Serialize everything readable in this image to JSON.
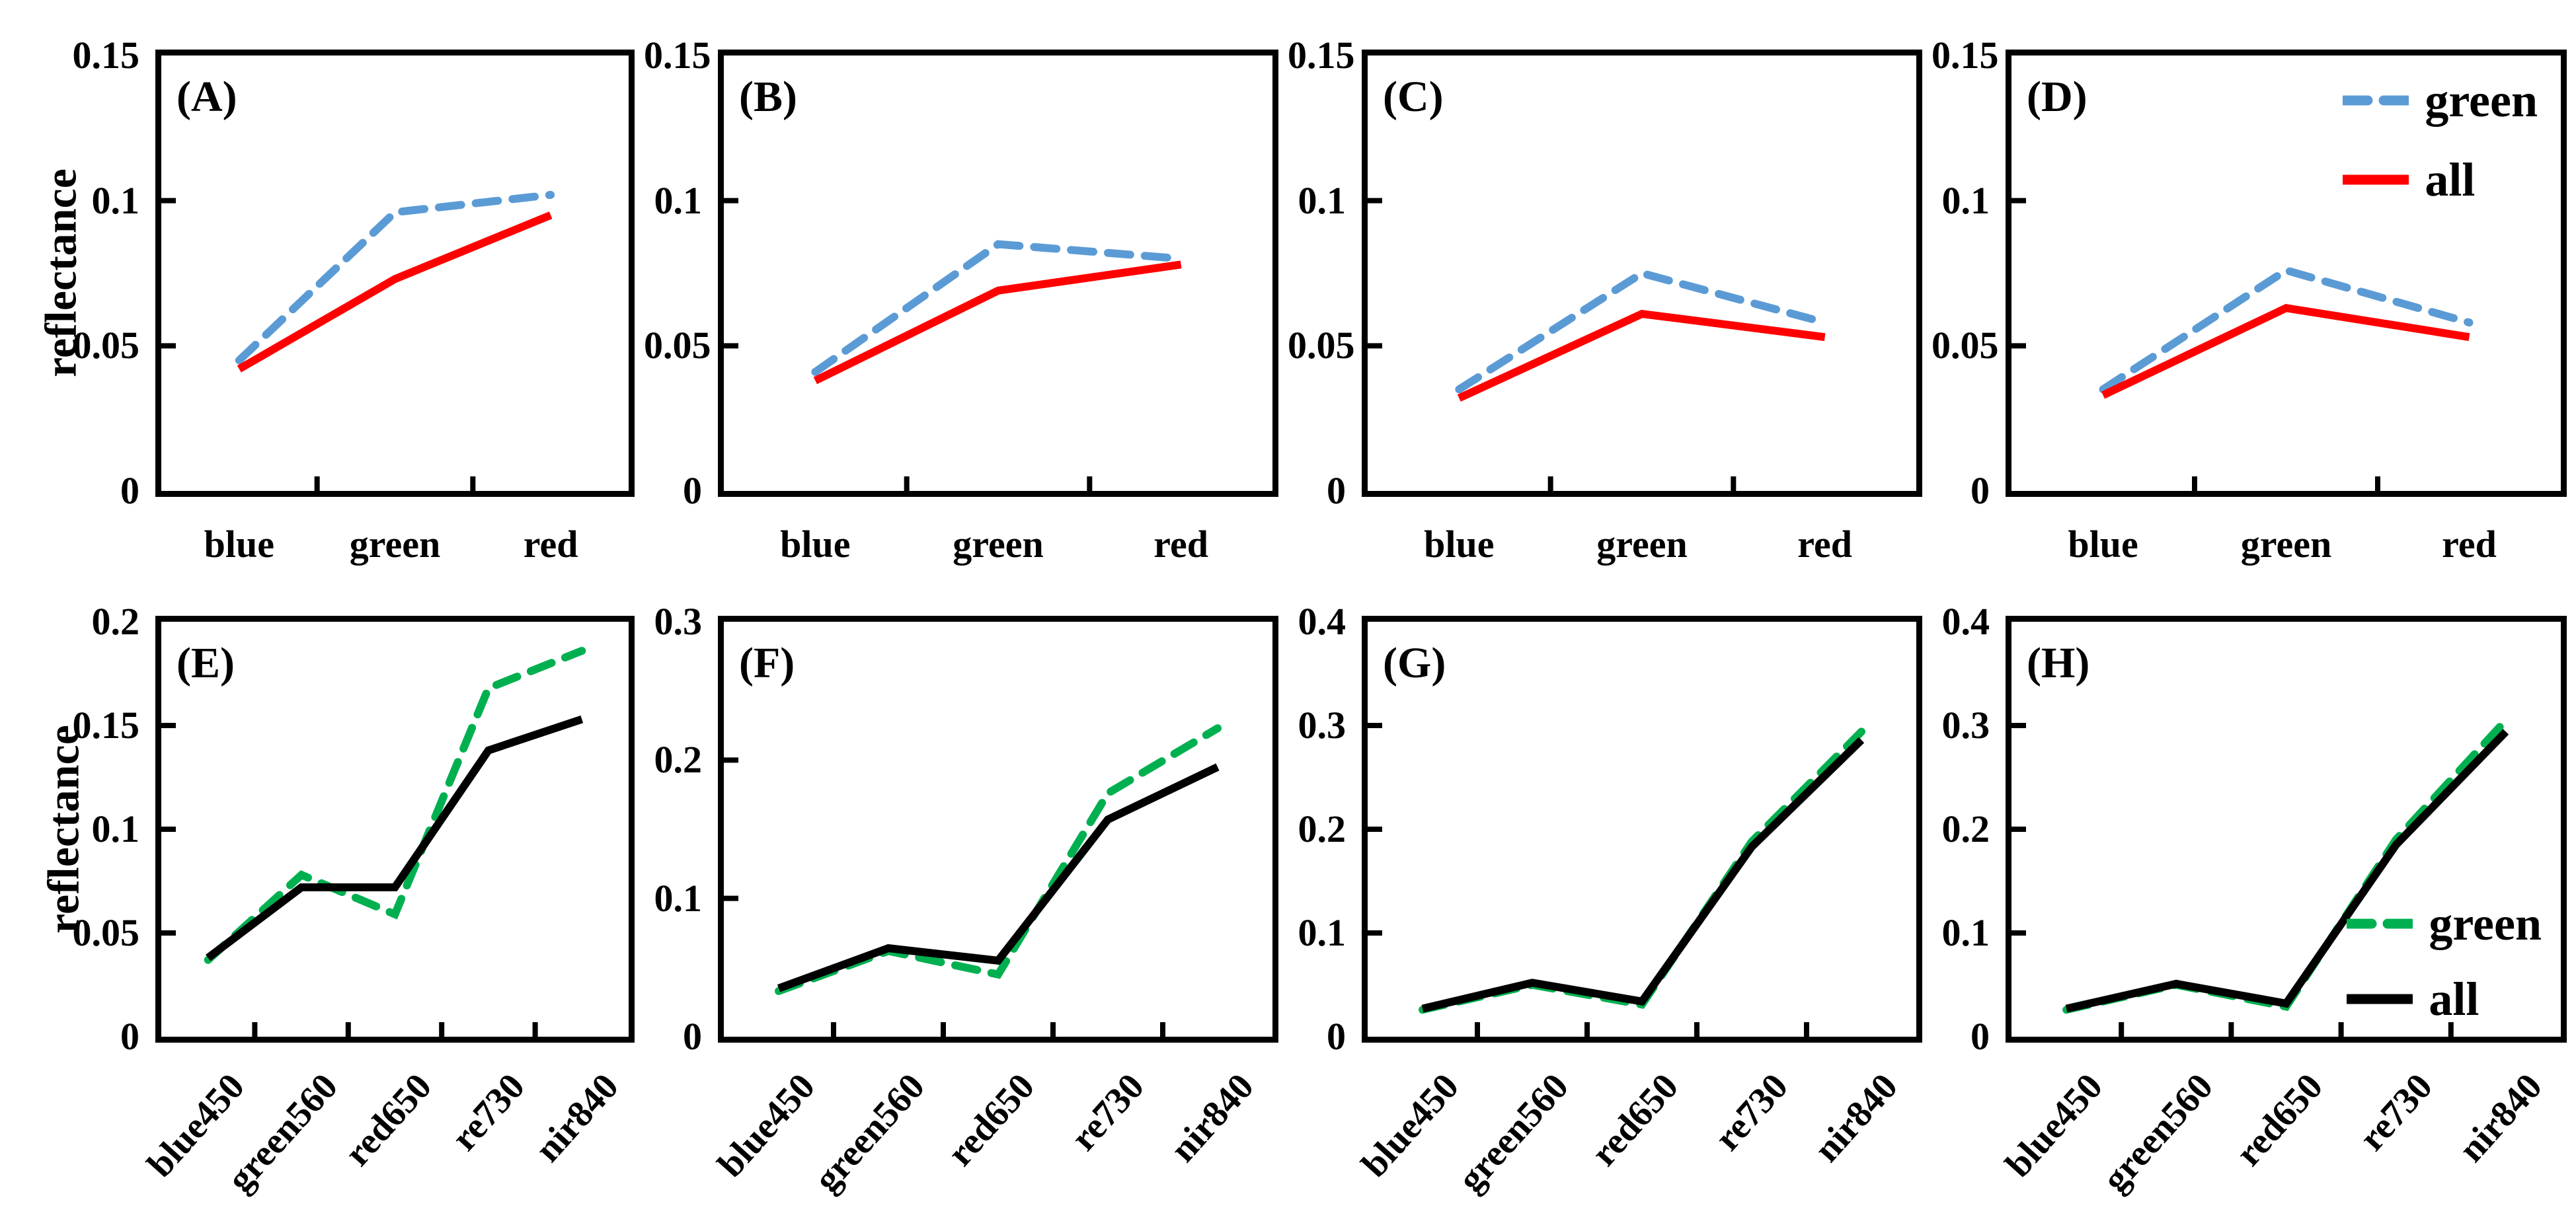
{
  "figure": {
    "ylabel": "reflectance",
    "background": "#FFFFFF",
    "axis_color": "#000000",
    "legend_row1": {
      "position": "top-right of panel D",
      "items": [
        {
          "label": "green",
          "color": "#5B9BD5",
          "dash": true
        },
        {
          "label": "all",
          "color": "#FF0000",
          "dash": false
        }
      ]
    },
    "legend_row2": {
      "position": "middle-right of panel H",
      "items": [
        {
          "label": "green",
          "color": "#00B050",
          "dash": true
        },
        {
          "label": "all",
          "color": "#000000",
          "dash": false
        }
      ]
    }
  },
  "chart_data": [
    {
      "panel_label": "(A)",
      "type": "line",
      "row": 0,
      "col": 0,
      "categories": [
        "blue",
        "green",
        "red"
      ],
      "ylim": [
        0,
        0.15
      ],
      "yticks": [
        0,
        0.05,
        0.1,
        0.15
      ],
      "ytick_labels": [
        "0",
        "0.05",
        "0.1",
        "0.15"
      ],
      "ylabel": "reflectance",
      "show_ylabel": true,
      "legend": false,
      "grid": false,
      "series": [
        {
          "name": "green",
          "color": "#5B9BD5",
          "dash": true,
          "values": [
            0.045,
            0.096,
            0.102
          ]
        },
        {
          "name": "all",
          "color": "#FF0000",
          "dash": false,
          "values": [
            0.042,
            0.073,
            0.095
          ]
        }
      ]
    },
    {
      "panel_label": "(B)",
      "type": "line",
      "row": 0,
      "col": 1,
      "categories": [
        "blue",
        "green",
        "red"
      ],
      "ylim": [
        0,
        0.15
      ],
      "yticks": [
        0,
        0.05,
        0.1,
        0.15
      ],
      "ytick_labels": [
        "0",
        "0.05",
        "0.1",
        "0.15"
      ],
      "show_ylabel": false,
      "legend": false,
      "grid": false,
      "series": [
        {
          "name": "green",
          "color": "#5B9BD5",
          "dash": true,
          "values": [
            0.041,
            0.085,
            0.08
          ]
        },
        {
          "name": "all",
          "color": "#FF0000",
          "dash": false,
          "values": [
            0.038,
            0.069,
            0.078
          ]
        }
      ]
    },
    {
      "panel_label": "(C)",
      "type": "line",
      "row": 0,
      "col": 2,
      "categories": [
        "blue",
        "green",
        "red"
      ],
      "ylim": [
        0,
        0.15
      ],
      "yticks": [
        0,
        0.05,
        0.1,
        0.15
      ],
      "ytick_labels": [
        "0",
        "0.05",
        "0.1",
        "0.15"
      ],
      "show_ylabel": false,
      "legend": false,
      "grid": false,
      "series": [
        {
          "name": "green",
          "color": "#5B9BD5",
          "dash": true,
          "values": [
            0.035,
            0.075,
            0.058
          ]
        },
        {
          "name": "all",
          "color": "#FF0000",
          "dash": false,
          "values": [
            0.032,
            0.061,
            0.053
          ]
        }
      ]
    },
    {
      "panel_label": "(D)",
      "type": "line",
      "row": 0,
      "col": 3,
      "categories": [
        "blue",
        "green",
        "red"
      ],
      "ylim": [
        0,
        0.15
      ],
      "yticks": [
        0,
        0.05,
        0.1,
        0.15
      ],
      "ytick_labels": [
        "0",
        "0.05",
        "0.1",
        "0.15"
      ],
      "show_ylabel": false,
      "legend": true,
      "legend_position": "top-right",
      "grid": false,
      "series": [
        {
          "name": "green",
          "color": "#5B9BD5",
          "dash": true,
          "values": [
            0.035,
            0.076,
            0.058
          ]
        },
        {
          "name": "all",
          "color": "#FF0000",
          "dash": false,
          "values": [
            0.033,
            0.063,
            0.053
          ]
        }
      ]
    },
    {
      "panel_label": "(E)",
      "type": "line",
      "row": 1,
      "col": 0,
      "categories": [
        "blue450",
        "green560",
        "red650",
        "re730",
        "nir840"
      ],
      "ylim": [
        0,
        0.2
      ],
      "yticks": [
        0,
        0.05,
        0.1,
        0.15,
        0.2
      ],
      "ytick_labels": [
        "0",
        "0.05",
        "0.1",
        "0.15",
        "0.2"
      ],
      "ylabel": "reflectance",
      "show_ylabel": true,
      "legend": false,
      "grid": false,
      "series": [
        {
          "name": "green",
          "color": "#00B050",
          "dash": true,
          "values": [
            0.037,
            0.078,
            0.059,
            0.168,
            0.186
          ]
        },
        {
          "name": "all",
          "color": "#000000",
          "dash": false,
          "values": [
            0.038,
            0.072,
            0.072,
            0.138,
            0.153
          ]
        }
      ]
    },
    {
      "panel_label": "(F)",
      "type": "line",
      "row": 1,
      "col": 1,
      "categories": [
        "blue450",
        "green560",
        "red650",
        "re730",
        "nir840"
      ],
      "ylim": [
        0,
        0.3
      ],
      "yticks": [
        0,
        0.1,
        0.2,
        0.3
      ],
      "ytick_labels": [
        "0",
        "0.1",
        "0.2",
        "0.3"
      ],
      "show_ylabel": false,
      "legend": false,
      "grid": false,
      "series": [
        {
          "name": "green",
          "color": "#00B050",
          "dash": true,
          "values": [
            0.033,
            0.062,
            0.045,
            0.176,
            0.223
          ]
        },
        {
          "name": "all",
          "color": "#000000",
          "dash": false,
          "values": [
            0.035,
            0.064,
            0.055,
            0.157,
            0.195
          ]
        }
      ]
    },
    {
      "panel_label": "(G)",
      "type": "line",
      "row": 1,
      "col": 2,
      "categories": [
        "blue450",
        "green560",
        "red650",
        "re730",
        "nir840"
      ],
      "ylim": [
        0,
        0.4
      ],
      "yticks": [
        0,
        0.1,
        0.2,
        0.3,
        0.4
      ],
      "ytick_labels": [
        "0",
        "0.1",
        "0.2",
        "0.3",
        "0.4"
      ],
      "show_ylabel": false,
      "legend": false,
      "grid": false,
      "series": [
        {
          "name": "green",
          "color": "#00B050",
          "dash": true,
          "values": [
            0.026,
            0.05,
            0.031,
            0.188,
            0.294
          ]
        },
        {
          "name": "all",
          "color": "#000000",
          "dash": false,
          "values": [
            0.027,
            0.052,
            0.034,
            0.183,
            0.286
          ]
        }
      ]
    },
    {
      "panel_label": "(H)",
      "type": "line",
      "row": 1,
      "col": 3,
      "categories": [
        "blue450",
        "green560",
        "red650",
        "re730",
        "nir840"
      ],
      "ylim": [
        0,
        0.4
      ],
      "yticks": [
        0,
        0.1,
        0.2,
        0.3,
        0.4
      ],
      "ytick_labels": [
        "0",
        "0.1",
        "0.2",
        "0.3",
        "0.4"
      ],
      "show_ylabel": false,
      "legend": true,
      "legend_position": "middle-right",
      "grid": false,
      "series": [
        {
          "name": "green",
          "color": "#00B050",
          "dash": true,
          "values": [
            0.026,
            0.05,
            0.029,
            0.19,
            0.305
          ]
        },
        {
          "name": "all",
          "color": "#000000",
          "dash": false,
          "values": [
            0.027,
            0.051,
            0.032,
            0.185,
            0.294
          ]
        }
      ]
    }
  ]
}
